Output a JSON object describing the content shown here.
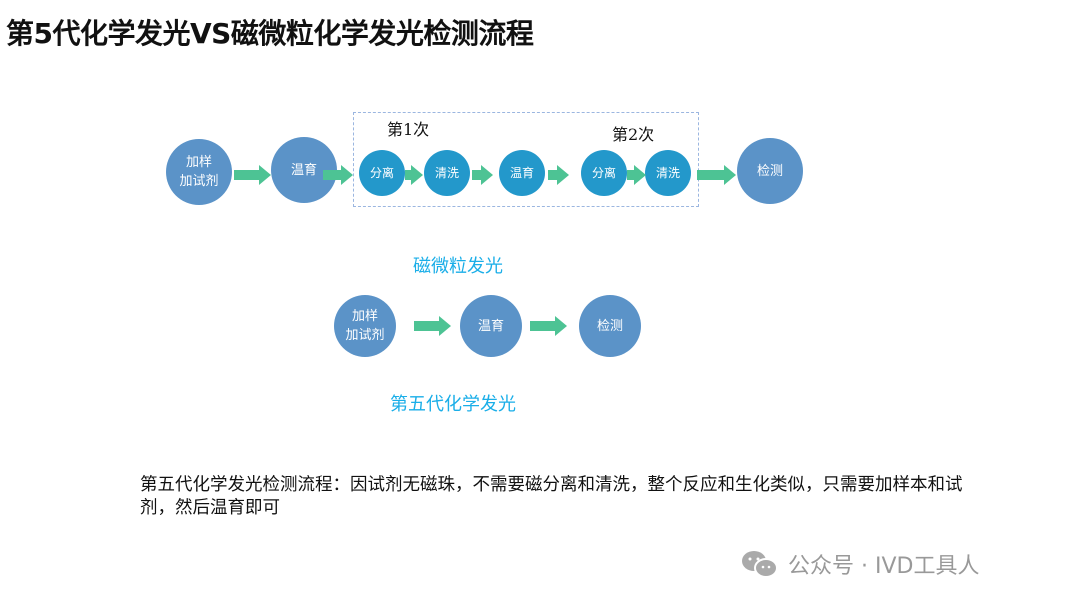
{
  "title": "第5代化学发光VS磁微粒化学发光检测流程",
  "magnetic": {
    "label": "磁微粒发光",
    "round1": "第1次",
    "round2": "第2次",
    "steps": [
      "加样\n加试剂",
      "温育",
      "分离",
      "清洗",
      "温育",
      "分离",
      "清洗",
      "检测"
    ]
  },
  "fifth": {
    "label": "第五代化学发光",
    "steps": [
      "加样\n加试剂",
      "温育",
      "检测"
    ]
  },
  "description": "第五代化学发光检测流程：因试剂无磁珠，不需要磁分离和清洗，整个反应和生化类似，只需要加样本和试剂，然后温育即可",
  "watermark": "公众号 · IVD工具人",
  "colors": {
    "large_circle": "#5b93c8",
    "small_circle": "#2398cb",
    "arrow": "#4dc394",
    "label": "#1aaee8"
  }
}
